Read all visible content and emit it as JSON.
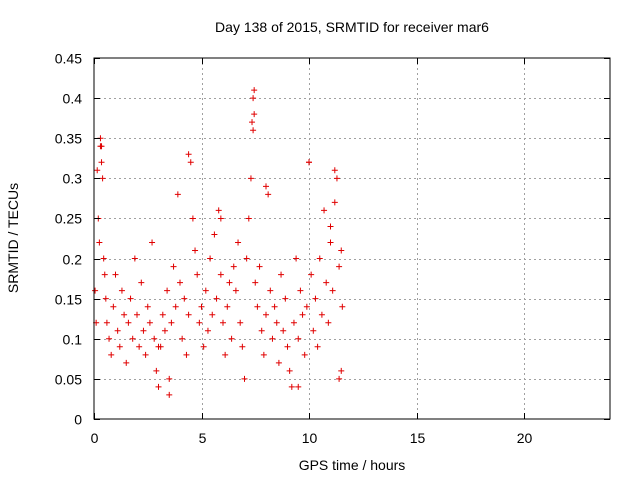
{
  "chart_data": {
    "type": "scatter",
    "title": "Day 138 of 2015, SRMTID for receiver mar6",
    "xlabel": "GPS time / hours",
    "ylabel": "SRMTID / TECUs",
    "xlim": [
      0,
      24
    ],
    "ylim": [
      0,
      0.45
    ],
    "xticks": [
      0,
      5,
      10,
      15,
      20
    ],
    "xtick_labels": [
      "0",
      "5",
      "10",
      "15",
      "20"
    ],
    "yticks": [
      0,
      0.05,
      0.1,
      0.15,
      0.2,
      0.25,
      0.3,
      0.35,
      0.4,
      0.45
    ],
    "ytick_labels": [
      "0",
      "0.05",
      "0.1",
      "0.15",
      "0.2",
      "0.25",
      "0.3",
      "0.35",
      "0.4",
      "0.45"
    ],
    "grid": true,
    "marker": "plus",
    "color": "#e00000",
    "series": [
      {
        "name": "SRMTID",
        "x": [
          0.05,
          0.1,
          0.15,
          0.2,
          0.25,
          0.3,
          0.35,
          0.4,
          0.45,
          0.5,
          0.55,
          0.6,
          0.7,
          0.8,
          0.9,
          1.0,
          1.1,
          1.2,
          1.3,
          1.4,
          1.5,
          1.6,
          1.7,
          1.8,
          1.9,
          2.0,
          2.1,
          2.2,
          2.3,
          2.4,
          2.5,
          2.6,
          2.7,
          2.8,
          2.9,
          3.0,
          3.1,
          3.2,
          3.3,
          3.4,
          3.5,
          3.6,
          3.7,
          3.8,
          3.9,
          4.0,
          4.1,
          4.2,
          4.3,
          4.4,
          4.5,
          4.6,
          4.7,
          4.8,
          4.9,
          5.0,
          5.1,
          5.2,
          5.3,
          5.4,
          5.5,
          5.6,
          5.7,
          5.8,
          5.9,
          6.0,
          6.1,
          6.2,
          6.3,
          6.4,
          6.5,
          6.6,
          6.7,
          6.8,
          6.9,
          7.0,
          7.1,
          7.2,
          7.3,
          7.35,
          7.4,
          7.45,
          7.5,
          7.6,
          7.7,
          7.8,
          7.9,
          8.0,
          8.1,
          8.2,
          8.3,
          8.4,
          8.5,
          8.6,
          8.7,
          8.8,
          8.9,
          9.0,
          9.1,
          9.2,
          9.3,
          9.4,
          9.5,
          9.6,
          9.7,
          9.8,
          9.9,
          10.0,
          10.1,
          10.2,
          10.3,
          10.4,
          10.5,
          10.6,
          10.7,
          10.8,
          10.9,
          11.0,
          11.1,
          11.2,
          11.3,
          11.4,
          11.5,
          11.55,
          0.3,
          0.35,
          4.4,
          5.9,
          7.4,
          7.45,
          8.0,
          10.0,
          11.0,
          11.2,
          11.4,
          3.0,
          3.5,
          9.5,
          11.5
        ],
        "y": [
          0.16,
          0.12,
          0.31,
          0.25,
          0.22,
          0.35,
          0.34,
          0.3,
          0.2,
          0.18,
          0.15,
          0.12,
          0.1,
          0.08,
          0.14,
          0.18,
          0.11,
          0.09,
          0.16,
          0.13,
          0.07,
          0.12,
          0.15,
          0.1,
          0.2,
          0.13,
          0.09,
          0.17,
          0.11,
          0.08,
          0.14,
          0.12,
          0.22,
          0.1,
          0.06,
          0.04,
          0.09,
          0.13,
          0.11,
          0.16,
          0.05,
          0.12,
          0.19,
          0.14,
          0.28,
          0.17,
          0.1,
          0.15,
          0.08,
          0.13,
          0.32,
          0.25,
          0.21,
          0.18,
          0.12,
          0.14,
          0.09,
          0.16,
          0.11,
          0.2,
          0.13,
          0.23,
          0.15,
          0.26,
          0.18,
          0.12,
          0.08,
          0.14,
          0.17,
          0.1,
          0.19,
          0.16,
          0.22,
          0.12,
          0.09,
          0.05,
          0.2,
          0.25,
          0.3,
          0.37,
          0.4,
          0.38,
          0.17,
          0.14,
          0.19,
          0.11,
          0.08,
          0.13,
          0.28,
          0.16,
          0.1,
          0.14,
          0.12,
          0.07,
          0.18,
          0.11,
          0.15,
          0.09,
          0.06,
          0.04,
          0.12,
          0.2,
          0.1,
          0.16,
          0.13,
          0.08,
          0.14,
          0.32,
          0.18,
          0.11,
          0.15,
          0.09,
          0.2,
          0.13,
          0.26,
          0.17,
          0.12,
          0.22,
          0.16,
          0.27,
          0.3,
          0.19,
          0.21,
          0.14,
          0.34,
          0.32,
          0.33,
          0.25,
          0.36,
          0.41,
          0.29,
          0.32,
          0.24,
          0.31,
          0.05,
          0.09,
          0.03,
          0.04,
          0.06
        ]
      }
    ]
  }
}
